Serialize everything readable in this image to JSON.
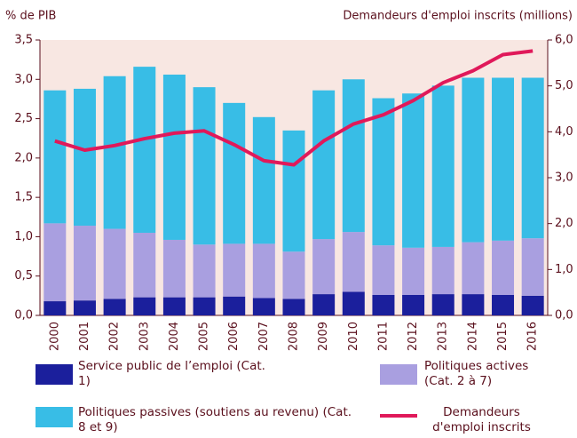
{
  "chart_data": {
    "type": "bar",
    "stacked": true,
    "ylabel": "% de PIB",
    "y2label": "Demandeurs d'emploi inscrits (millions)",
    "categories": [
      "2000",
      "2001",
      "2002",
      "2003",
      "2004",
      "2005",
      "2006",
      "2007",
      "2008",
      "2009",
      "2010",
      "2011",
      "2012",
      "2013",
      "2014",
      "2015",
      "2016"
    ],
    "series": [
      {
        "name": "Service public de l’emploi (Cat. 1)",
        "color": "#1b1f9c",
        "values": [
          0.18,
          0.19,
          0.21,
          0.23,
          0.23,
          0.23,
          0.24,
          0.22,
          0.21,
          0.27,
          0.3,
          0.26,
          0.26,
          0.27,
          0.27,
          0.26,
          0.25
        ]
      },
      {
        "name": "Politiques actives (Cat. 2 à 7)",
        "color": "#a99fe0",
        "values": [
          0.99,
          0.95,
          0.89,
          0.82,
          0.73,
          0.67,
          0.67,
          0.69,
          0.6,
          0.7,
          0.76,
          0.63,
          0.6,
          0.6,
          0.66,
          0.69,
          0.73
        ]
      },
      {
        "name": "Politiques passives (soutiens au revenu) (Cat. 8 et 9)",
        "color": "#38bde6",
        "values": [
          1.69,
          1.74,
          1.94,
          2.11,
          2.1,
          2.0,
          1.79,
          1.61,
          1.54,
          1.89,
          1.94,
          1.87,
          1.96,
          2.05,
          2.09,
          2.07,
          2.04
        ]
      },
      {
        "name": "Demandeurs d'emploi inscrits",
        "color": "#e0195a",
        "type": "line",
        "axis": "y2",
        "values": [
          3.8,
          3.6,
          3.7,
          3.85,
          3.97,
          4.02,
          3.72,
          3.37,
          3.28,
          3.8,
          4.17,
          4.37,
          4.68,
          5.07,
          5.33,
          5.68,
          5.76
        ]
      }
    ],
    "ylim": [
      0,
      3.5
    ],
    "yticks": [
      {
        "value": 0,
        "label": "0,0"
      },
      {
        "value": 0.5,
        "label": "0,5"
      },
      {
        "value": 1,
        "label": "1,0"
      },
      {
        "value": 1.5,
        "label": "1,5"
      },
      {
        "value": 2,
        "label": "2,0"
      },
      {
        "value": 2.5,
        "label": "2,5"
      },
      {
        "value": 3,
        "label": "3,0"
      },
      {
        "value": 3.5,
        "label": "3,5"
      }
    ],
    "y2lim": [
      0,
      6
    ],
    "y2ticks": [
      {
        "value": 0,
        "label": "0,0"
      },
      {
        "value": 1,
        "label": "1,0"
      },
      {
        "value": 2,
        "label": "2,0"
      },
      {
        "value": 3,
        "label": "3,0"
      },
      {
        "value": 4,
        "label": "4,0"
      },
      {
        "value": 5,
        "label": "5,0"
      },
      {
        "value": 6,
        "label": "6,0"
      }
    ],
    "grid": false,
    "legend": "bottom"
  }
}
